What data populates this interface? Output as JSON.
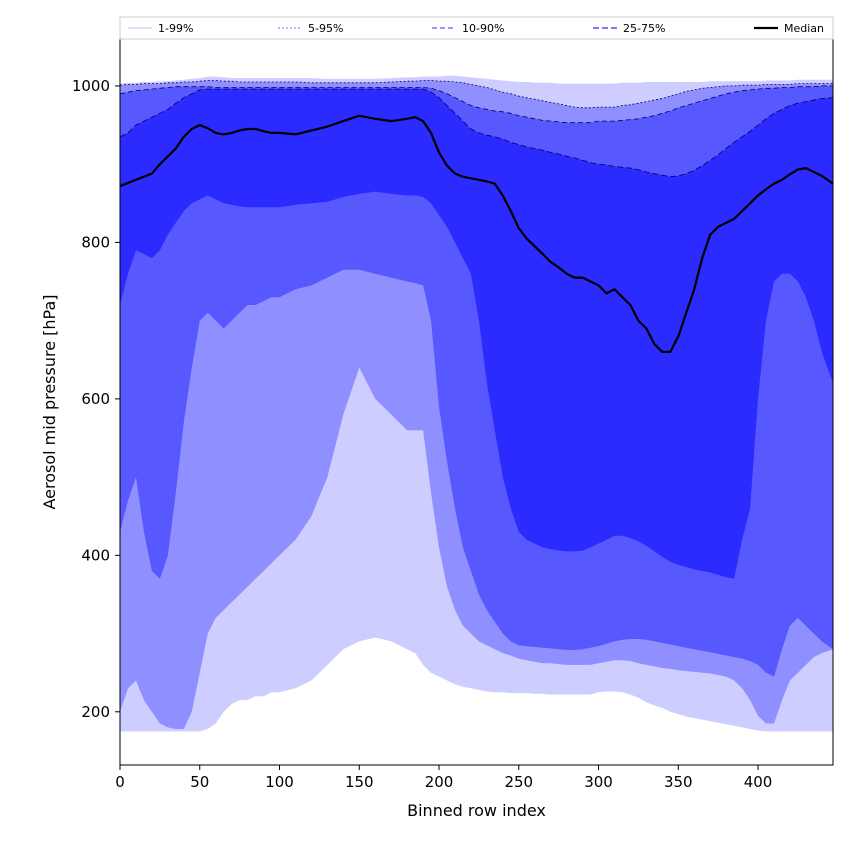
{
  "chart_data": {
    "type": "area",
    "xlabel": "Binned row index",
    "ylabel": "Aerosol mid pressure [hPa]",
    "xlim": [
      0,
      447
    ],
    "ylim": [
      132,
      1060
    ],
    "x_ticks": [
      0,
      50,
      100,
      150,
      200,
      250,
      300,
      350,
      400
    ],
    "y_ticks": [
      200,
      400,
      600,
      800,
      1000
    ],
    "grid": false,
    "legend_placement": "top, spanning full width",
    "x": [
      0,
      5,
      10,
      15,
      20,
      25,
      30,
      35,
      40,
      45,
      50,
      55,
      60,
      65,
      70,
      75,
      80,
      85,
      90,
      95,
      100,
      110,
      120,
      130,
      140,
      150,
      160,
      170,
      180,
      185,
      190,
      195,
      200,
      205,
      210,
      215,
      220,
      225,
      230,
      235,
      240,
      245,
      250,
      255,
      260,
      265,
      270,
      275,
      280,
      285,
      290,
      295,
      300,
      305,
      310,
      315,
      320,
      325,
      330,
      335,
      340,
      345,
      350,
      355,
      360,
      365,
      370,
      375,
      380,
      385,
      390,
      395,
      400,
      405,
      410,
      415,
      420,
      425,
      430,
      435,
      440,
      447
    ],
    "bands": [
      {
        "name": "1-99%",
        "color": "#cdcdff",
        "lower": [
          175,
          175,
          175,
          175,
          175,
          175,
          175,
          175,
          175,
          175,
          175,
          178,
          185,
          200,
          210,
          215,
          215,
          220,
          220,
          225,
          225,
          230,
          240,
          260,
          280,
          290,
          295,
          290,
          280,
          275,
          260,
          250,
          245,
          240,
          235,
          232,
          230,
          228,
          226,
          225,
          225,
          224,
          224,
          224,
          223,
          223,
          222,
          222,
          222,
          222,
          222,
          222,
          225,
          226,
          226,
          225,
          222,
          218,
          212,
          208,
          205,
          200,
          197,
          194,
          192,
          190,
          188,
          186,
          184,
          182,
          180,
          178,
          176,
          175,
          175,
          175,
          175,
          175,
          175,
          175,
          175,
          175
        ],
        "upper": [
          1003,
          1004,
          1004,
          1005,
          1005,
          1006,
          1006,
          1007,
          1008,
          1009,
          1010,
          1012,
          1012,
          1011,
          1010,
          1010,
          1010,
          1010,
          1010,
          1010,
          1010,
          1010,
          1010,
          1009,
          1009,
          1009,
          1009,
          1010,
          1011,
          1011,
          1012,
          1012,
          1012,
          1013,
          1013,
          1012,
          1011,
          1010,
          1009,
          1008,
          1007,
          1006,
          1005,
          1005,
          1004,
          1004,
          1004,
          1003,
          1003,
          1003,
          1003,
          1003,
          1003,
          1003,
          1003,
          1004,
          1004,
          1004,
          1005,
          1005,
          1005,
          1005,
          1005,
          1005,
          1005,
          1005,
          1006,
          1006,
          1006,
          1006,
          1006,
          1006,
          1006,
          1007,
          1007,
          1007,
          1007,
          1008,
          1008,
          1008,
          1008,
          1008
        ]
      },
      {
        "name": "5-95%",
        "color": "#8f8fff",
        "lower": [
          200,
          230,
          240,
          215,
          200,
          185,
          180,
          178,
          178,
          200,
          250,
          300,
          320,
          330,
          340,
          350,
          360,
          370,
          380,
          390,
          400,
          420,
          450,
          500,
          580,
          640,
          600,
          580,
          560,
          560,
          560,
          480,
          410,
          360,
          330,
          310,
          300,
          290,
          285,
          280,
          275,
          272,
          268,
          266,
          264,
          262,
          262,
          261,
          260,
          260,
          260,
          260,
          262,
          264,
          266,
          266,
          265,
          262,
          260,
          258,
          256,
          255,
          253,
          252,
          251,
          250,
          249,
          247,
          245,
          240,
          230,
          215,
          195,
          185,
          185,
          215,
          240,
          250,
          260,
          270,
          275,
          280
        ],
        "upper": [
          1001,
          1002,
          1002,
          1003,
          1003,
          1003,
          1004,
          1004,
          1005,
          1005,
          1006,
          1007,
          1007,
          1006,
          1006,
          1005,
          1005,
          1005,
          1005,
          1005,
          1005,
          1005,
          1004,
          1004,
          1004,
          1004,
          1004,
          1005,
          1006,
          1006,
          1007,
          1007,
          1006,
          1006,
          1005,
          1004,
          1002,
          1000,
          998,
          995,
          992,
          990,
          987,
          985,
          983,
          981,
          979,
          977,
          975,
          973,
          972,
          972,
          973,
          973,
          973,
          975,
          976,
          978,
          980,
          982,
          984,
          987,
          990,
          993,
          995,
          997,
          998,
          999,
          1000,
          1000,
          1001,
          1001,
          1001,
          1002,
          1002,
          1002,
          1002,
          1003,
          1003,
          1003,
          1003,
          1003
        ]
      },
      {
        "name": "10-90%",
        "color": "#5858ff",
        "lower": [
          430,
          470,
          500,
          430,
          380,
          370,
          400,
          480,
          570,
          640,
          700,
          710,
          700,
          690,
          700,
          710,
          720,
          720,
          725,
          730,
          730,
          740,
          745,
          755,
          765,
          765,
          760,
          755,
          750,
          748,
          745,
          700,
          590,
          520,
          460,
          410,
          380,
          350,
          330,
          315,
          300,
          290,
          285,
          284,
          283,
          282,
          281,
          280,
          279,
          279,
          280,
          282,
          284,
          287,
          290,
          292,
          293,
          293,
          292,
          290,
          288,
          286,
          284,
          282,
          280,
          278,
          276,
          274,
          272,
          270,
          268,
          265,
          260,
          250,
          245,
          280,
          310,
          320,
          310,
          300,
          290,
          280
        ],
        "upper": [
          990,
          992,
          994,
          995,
          996,
          997,
          998,
          999,
          999,
          999,
          999,
          999,
          998,
          998,
          998,
          998,
          998,
          998,
          998,
          998,
          998,
          998,
          998,
          998,
          998,
          998,
          998,
          998,
          998,
          998,
          998,
          997,
          994,
          990,
          985,
          980,
          975,
          972,
          970,
          968,
          967,
          965,
          962,
          960,
          958,
          956,
          955,
          954,
          953,
          953,
          953,
          953,
          955,
          955,
          955,
          956,
          957,
          958,
          960,
          962,
          965,
          968,
          972,
          975,
          978,
          981,
          984,
          987,
          990,
          992,
          994,
          995,
          996,
          997,
          997,
          998,
          998,
          999,
          999,
          999,
          1000,
          1000
        ]
      },
      {
        "name": "25-75%",
        "color": "#2b2bff",
        "lower": [
          720,
          760,
          790,
          785,
          780,
          790,
          810,
          825,
          840,
          850,
          855,
          860,
          855,
          850,
          848,
          846,
          845,
          845,
          845,
          845,
          845,
          848,
          850,
          852,
          858,
          862,
          865,
          862,
          860,
          860,
          858,
          850,
          835,
          820,
          800,
          780,
          760,
          700,
          620,
          560,
          500,
          460,
          430,
          420,
          415,
          410,
          408,
          406,
          405,
          405,
          406,
          410,
          415,
          420,
          425,
          425,
          422,
          418,
          412,
          405,
          398,
          392,
          388,
          385,
          382,
          380,
          378,
          375,
          372,
          370,
          420,
          460,
          600,
          700,
          750,
          760,
          760,
          750,
          730,
          700,
          660,
          620
        ],
        "upper": [
          935,
          940,
          950,
          955,
          960,
          965,
          970,
          978,
          985,
          990,
          995,
          996,
          996,
          996,
          996,
          996,
          996,
          996,
          996,
          996,
          996,
          996,
          996,
          996,
          996,
          996,
          996,
          996,
          996,
          996,
          996,
          992,
          985,
          975,
          965,
          955,
          945,
          940,
          937,
          935,
          932,
          928,
          925,
          922,
          920,
          918,
          915,
          913,
          910,
          908,
          905,
          902,
          900,
          899,
          897,
          896,
          895,
          893,
          890,
          888,
          886,
          884,
          885,
          888,
          892,
          898,
          905,
          912,
          920,
          928,
          935,
          942,
          950,
          958,
          965,
          970,
          975,
          978,
          980,
          982,
          984,
          985
        ]
      }
    ],
    "series": [
      {
        "name": "Median",
        "color": "#000000",
        "values": [
          872,
          876,
          880,
          884,
          888,
          900,
          910,
          920,
          935,
          945,
          950,
          946,
          940,
          938,
          940,
          943,
          945,
          945,
          942,
          940,
          940,
          938,
          943,
          948,
          955,
          962,
          958,
          955,
          958,
          960,
          955,
          940,
          915,
          898,
          888,
          884,
          882,
          880,
          878,
          875,
          860,
          840,
          818,
          805,
          795,
          785,
          775,
          768,
          760,
          755,
          755,
          750,
          745,
          735,
          740,
          730,
          720,
          700,
          690,
          670,
          660,
          660,
          680,
          710,
          740,
          780,
          810,
          820,
          825,
          830,
          840,
          850,
          860,
          868,
          875,
          880,
          887,
          893,
          895,
          890,
          885,
          875
        ]
      }
    ]
  }
}
